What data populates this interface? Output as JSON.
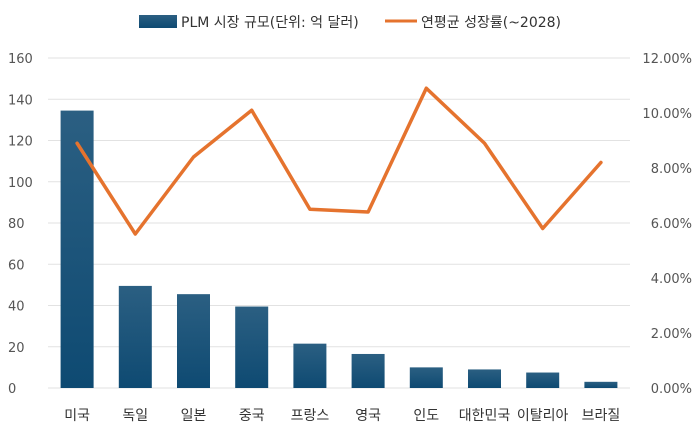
{
  "chart_data": {
    "type": "bar",
    "categories": [
      "미국",
      "독일",
      "일본",
      "중국",
      "프랑스",
      "영국",
      "인도",
      "대한민국",
      "이탈리아",
      "브라질"
    ],
    "series": [
      {
        "name": "PLM 시장 규모(단위: 억 달러)",
        "type": "bar",
        "axis": "left",
        "values": [
          134.5,
          49.5,
          45.5,
          39.5,
          21.5,
          16.5,
          10.0,
          9.0,
          7.5,
          3.0
        ]
      },
      {
        "name": "연평균 성장률(~2028)",
        "type": "line",
        "axis": "right",
        "values": [
          8.9,
          5.6,
          8.4,
          10.1,
          6.5,
          6.4,
          10.9,
          8.9,
          5.8,
          8.2
        ]
      }
    ],
    "yleft": {
      "ylim": [
        0,
        160
      ],
      "ticks": [
        "0",
        "20",
        "40",
        "60",
        "80",
        "100",
        "120",
        "140",
        "160"
      ]
    },
    "yright": {
      "ylim": [
        0,
        12
      ],
      "ticks": [
        "0.00%",
        "2.00%",
        "4.00%",
        "6.00%",
        "8.00%",
        "10.00%",
        "12.00%"
      ]
    },
    "grid": true,
    "legend": "top-center",
    "colors": {
      "bar_top": "#2b5f82",
      "bar_bottom": "#0e4a72",
      "line": "#e5732e",
      "grid": "#e2e2e2"
    }
  }
}
